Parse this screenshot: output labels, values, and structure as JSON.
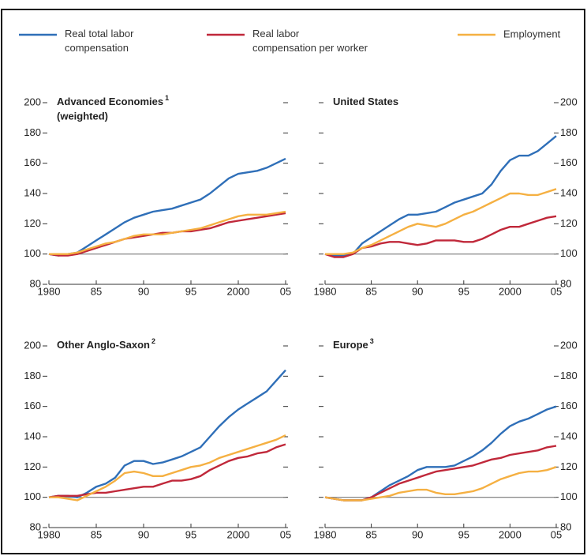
{
  "chart_data": [
    {
      "type": "line",
      "title": "Advanced Economies",
      "title_note": "1",
      "subtitle": "(weighted)",
      "yaxis_position": "left",
      "x": [
        1980,
        1981,
        1982,
        1983,
        1984,
        1985,
        1986,
        1987,
        1988,
        1989,
        1990,
        1991,
        1992,
        1993,
        1994,
        1995,
        1996,
        1997,
        1998,
        1999,
        2000,
        2001,
        2002,
        2003,
        2004,
        2005
      ],
      "xlim": [
        1980,
        2005
      ],
      "xticks": [
        1980,
        {
          "value": 1985,
          "label": "85"
        },
        {
          "value": 1990,
          "label": "90"
        },
        {
          "value": 1995,
          "label": "95"
        },
        2000,
        {
          "value": 2005,
          "label": "05"
        }
      ],
      "ylim": [
        80,
        200
      ],
      "yticks": [
        80,
        100,
        120,
        140,
        160,
        180,
        200
      ],
      "baseline": 100,
      "series": [
        {
          "name": "Real total labor compensation",
          "color": "#2f6fb8",
          "values": [
            100,
            99,
            100,
            101,
            105,
            109,
            113,
            117,
            121,
            124,
            126,
            128,
            129,
            130,
            132,
            134,
            136,
            140,
            145,
            150,
            153,
            154,
            155,
            157,
            160,
            163
          ]
        },
        {
          "name": "Real labor compensation per worker",
          "color": "#c0283a",
          "values": [
            100,
            99,
            99,
            100,
            102,
            104,
            106,
            108,
            110,
            111,
            112,
            113,
            114,
            114,
            115,
            115,
            116,
            117,
            119,
            121,
            122,
            123,
            124,
            125,
            126,
            127
          ]
        },
        {
          "name": "Employment",
          "color": "#f5b042",
          "values": [
            100,
            100,
            100,
            101,
            103,
            105,
            107,
            108,
            110,
            112,
            113,
            113,
            113,
            114,
            115,
            116,
            117,
            119,
            121,
            123,
            125,
            126,
            126,
            126,
            127,
            128
          ]
        }
      ]
    },
    {
      "type": "line",
      "title": "United States",
      "yaxis_position": "right",
      "x": [
        1980,
        1981,
        1982,
        1983,
        1984,
        1985,
        1986,
        1987,
        1988,
        1989,
        1990,
        1991,
        1992,
        1993,
        1994,
        1995,
        1996,
        1997,
        1998,
        1999,
        2000,
        2001,
        2002,
        2003,
        2004,
        2005
      ],
      "xlim": [
        1980,
        2005
      ],
      "xticks": [
        1980,
        {
          "value": 1985,
          "label": "85"
        },
        {
          "value": 1990,
          "label": "90"
        },
        {
          "value": 1995,
          "label": "95"
        },
        2000,
        {
          "value": 2005,
          "label": "05"
        }
      ],
      "ylim": [
        80,
        200
      ],
      "yticks": [
        80,
        100,
        120,
        140,
        160,
        180,
        200
      ],
      "baseline": 100,
      "series": [
        {
          "color": "#2f6fb8",
          "values": [
            100,
            99,
            99,
            100,
            107,
            111,
            115,
            119,
            123,
            126,
            126,
            127,
            128,
            131,
            134,
            136,
            138,
            140,
            146,
            155,
            162,
            165,
            165,
            168,
            173,
            178
          ]
        },
        {
          "color": "#c0283a",
          "values": [
            100,
            98,
            98,
            100,
            104,
            105,
            107,
            108,
            108,
            107,
            106,
            107,
            109,
            109,
            109,
            108,
            108,
            110,
            113,
            116,
            118,
            118,
            120,
            122,
            124,
            125
          ]
        },
        {
          "color": "#f5b042",
          "values": [
            100,
            100,
            100,
            101,
            104,
            106,
            109,
            112,
            115,
            118,
            120,
            119,
            118,
            120,
            123,
            126,
            128,
            131,
            134,
            137,
            140,
            140,
            139,
            139,
            141,
            143
          ]
        }
      ]
    },
    {
      "type": "line",
      "title": "Other Anglo-Saxon",
      "title_note": "2",
      "yaxis_position": "left",
      "x": [
        1980,
        1981,
        1982,
        1983,
        1984,
        1985,
        1986,
        1987,
        1988,
        1989,
        1990,
        1991,
        1992,
        1993,
        1994,
        1995,
        1996,
        1997,
        1998,
        1999,
        2000,
        2001,
        2002,
        2003,
        2004,
        2005
      ],
      "xlim": [
        1980,
        2005
      ],
      "xticks": [
        1980,
        {
          "value": 1985,
          "label": "85"
        },
        {
          "value": 1990,
          "label": "90"
        },
        {
          "value": 1995,
          "label": "95"
        },
        2000,
        {
          "value": 2005,
          "label": "05"
        }
      ],
      "ylim": [
        80,
        200
      ],
      "yticks": [
        80,
        100,
        120,
        140,
        160,
        180,
        200
      ],
      "baseline": 100,
      "series": [
        {
          "color": "#2f6fb8",
          "values": [
            100,
            101,
            101,
            100,
            103,
            107,
            109,
            113,
            121,
            124,
            124,
            122,
            123,
            125,
            127,
            130,
            133,
            140,
            147,
            153,
            158,
            162,
            166,
            170,
            177,
            184
          ]
        },
        {
          "color": "#c0283a",
          "values": [
            100,
            101,
            101,
            101,
            102,
            103,
            103,
            104,
            105,
            106,
            107,
            107,
            109,
            111,
            111,
            112,
            114,
            118,
            121,
            124,
            126,
            127,
            129,
            130,
            133,
            135
          ]
        },
        {
          "color": "#f5b042",
          "values": [
            100,
            100,
            99,
            98,
            101,
            104,
            107,
            111,
            116,
            117,
            116,
            114,
            114,
            116,
            118,
            120,
            121,
            123,
            126,
            128,
            130,
            132,
            134,
            136,
            138,
            141
          ]
        }
      ]
    },
    {
      "type": "line",
      "title": "Europe",
      "title_note": "3",
      "yaxis_position": "right",
      "x": [
        1980,
        1981,
        1982,
        1983,
        1984,
        1985,
        1986,
        1987,
        1988,
        1989,
        1990,
        1991,
        1992,
        1993,
        1994,
        1995,
        1996,
        1997,
        1998,
        1999,
        2000,
        2001,
        2002,
        2003,
        2004,
        2005
      ],
      "xlim": [
        1980,
        2005
      ],
      "xticks": [
        1980,
        {
          "value": 1985,
          "label": "85"
        },
        {
          "value": 1990,
          "label": "90"
        },
        {
          "value": 1995,
          "label": "95"
        },
        2000,
        {
          "value": 2005,
          "label": "05"
        }
      ],
      "ylim": [
        80,
        200
      ],
      "yticks": [
        80,
        100,
        120,
        140,
        160,
        180,
        200
      ],
      "baseline": 100,
      "series": [
        {
          "color": "#2f6fb8",
          "values": [
            100,
            99,
            98,
            98,
            98,
            100,
            104,
            108,
            111,
            114,
            118,
            120,
            120,
            120,
            121,
            124,
            127,
            131,
            136,
            142,
            147,
            150,
            152,
            155,
            158,
            160
          ]
        },
        {
          "color": "#c0283a",
          "values": [
            100,
            99,
            98,
            98,
            98,
            100,
            103,
            106,
            109,
            111,
            113,
            115,
            117,
            118,
            119,
            120,
            121,
            123,
            125,
            126,
            128,
            129,
            130,
            131,
            133,
            134
          ]
        },
        {
          "color": "#f5b042",
          "values": [
            100,
            99,
            98,
            98,
            98,
            99,
            100,
            101,
            103,
            104,
            105,
            105,
            103,
            102,
            102,
            103,
            104,
            106,
            109,
            112,
            114,
            116,
            117,
            117,
            118,
            120
          ]
        }
      ]
    }
  ]
}
